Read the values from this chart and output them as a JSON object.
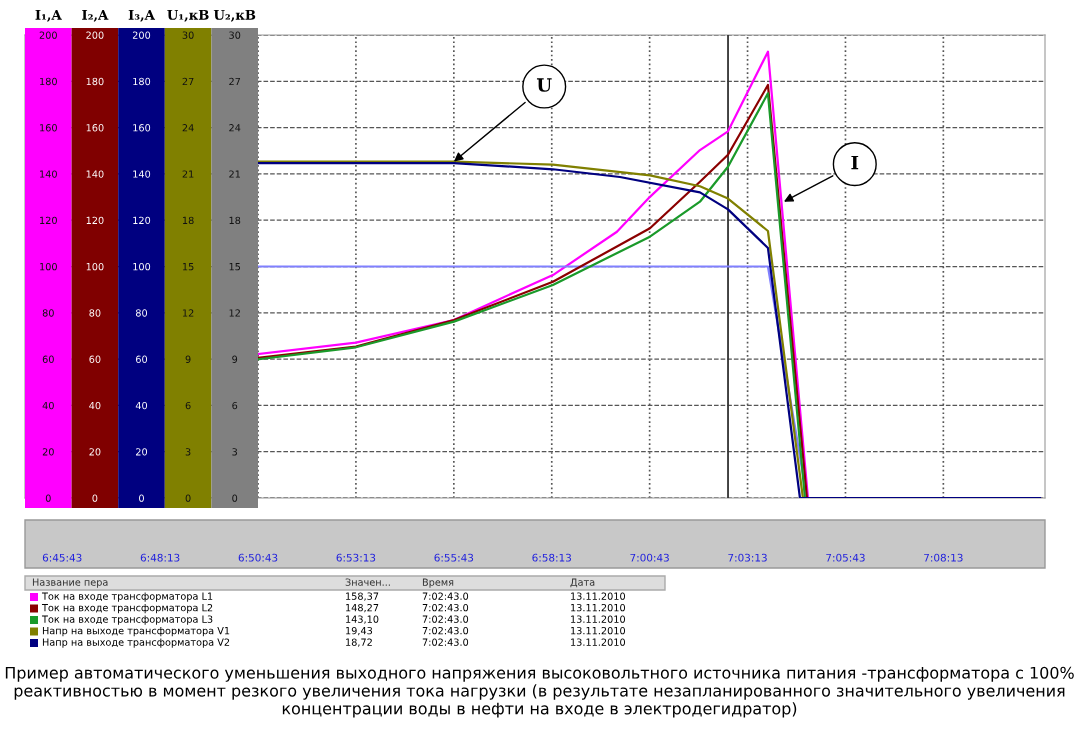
{
  "chart_data": [
    {
      "type": "line",
      "ylabel": "I₁,A",
      "y2label": "I₂,A",
      "y3label": "I₃,A",
      "ylim": [
        0,
        200
      ],
      "yticks": [
        0,
        20,
        40,
        60,
        80,
        100,
        120,
        140,
        160,
        180,
        200
      ],
      "y2lim": [
        0,
        200
      ],
      "y2ticks": [
        0,
        20,
        40,
        60,
        80,
        100,
        120,
        140,
        160,
        180,
        200
      ],
      "y3lim": [
        0,
        200
      ],
      "y3ticks": [
        0,
        20,
        40,
        60,
        80,
        100,
        120,
        140,
        160,
        180,
        200
      ],
      "xlim": [
        6.7461,
        7.1802
      ],
      "xticks": [
        {
          "value": 6.76194,
          "label": "6:45:43"
        },
        {
          "value": 6.80361,
          "label": "6:48:13"
        },
        {
          "value": 6.84528,
          "label": "6:50:43"
        },
        {
          "value": 6.88694,
          "label": "6:53:13"
        },
        {
          "value": 6.92861,
          "label": "6:55:43"
        },
        {
          "value": 6.97028,
          "label": "6:58:13"
        },
        {
          "value": 7.01194,
          "label": "7:00:43"
        },
        {
          "value": 7.05361,
          "label": "7:03:13"
        },
        {
          "value": 7.09528,
          "label": "7:05:43"
        },
        {
          "value": 7.13694,
          "label": "7:08:13"
        }
      ],
      "grid": true,
      "legend": "bottom",
      "marker": "none",
      "line_style": "solid",
      "series": [
        {
          "name": "Ток на входе трансформатора L1",
          "color": "#ff00ff",
          "axis": "y",
          "x": [
            6.84523,
            6.88694,
            6.92865,
            6.94823,
            6.97078,
            6.99803,
            7.01207,
            7.03335,
            7.04528,
            7.06229,
            7.07932,
            7.17806
          ],
          "values": [
            62.2,
            67.1,
            76.9,
            86,
            96.3,
            115,
            130.1,
            150.3,
            158.4,
            192.8,
            0,
            0
          ]
        },
        {
          "name": "Ток на входе трансформатора L2",
          "color": "#8b0000",
          "axis": "y2",
          "x": [
            6.84523,
            6.88694,
            6.92865,
            6.97078,
            7.01207,
            7.03335,
            7.04528,
            7.06229,
            7.07889,
            7.17806
          ],
          "values": [
            60.5,
            65.4,
            76.9,
            93.4,
            116.5,
            136.6,
            148.3,
            178.4,
            0,
            0
          ]
        },
        {
          "name": "Ток на входе трансформатора L3",
          "color": "#1a9a2a",
          "axis": "y3",
          "x": [
            6.84523,
            6.88694,
            6.92865,
            6.97078,
            7.01207,
            7.03335,
            7.04528,
            7.06229,
            7.07803,
            7.17806
          ],
          "values": [
            59.9,
            65.1,
            76.2,
            92.0,
            112.9,
            128,
            143.1,
            174.8,
            0,
            0
          ]
        },
        {
          "color": "#8080ff",
          "axis": "y",
          "x": [
            6.84523,
            7.06229,
            7.07889,
            7.17806
          ],
          "values": [
            100,
            100,
            0,
            0
          ]
        }
      ],
      "ref_lines": [
        {
          "axis": "x",
          "value": 7.0453,
          "color": "#333333",
          "line_style": "solid"
        }
      ],
      "annotations": [
        {
          "text": "I",
          "x": 7.0691,
          "y": 128
        },
        "Название пера",
        "Значен...",
        "Время",
        "Дата",
        "158,37",
        "7:02:43.0",
        "13.11.2010",
        "148,27",
        "7:02:43.0",
        "13.11.2010",
        "143,10",
        "7:02:43.0",
        "13.11.2010",
        "19,43",
        "7:02:43.0",
        "13.11.2010",
        "18,72",
        "7:02:43.0",
        "13.11.2010",
        "Пример автоматического уменьшения выходного напряжения высоковольтного источника питания -трансформатора с 100% реактивностью в момент резкого увеличения тока нагрузки (в результате незапланированного значительного увеличения концентрации воды в нефти на входе в электродегидратор)"
      ]
    },
    {
      "type": "line",
      "ylabel": "U₁,кВ",
      "y2label": "U₂,кВ",
      "ylim": [
        0,
        30
      ],
      "yticks": [
        0,
        3,
        6,
        9,
        12,
        15,
        18,
        21,
        24,
        27,
        30
      ],
      "y2lim": [
        0,
        30
      ],
      "y2ticks": [
        0,
        3,
        6,
        9,
        12,
        15,
        18,
        21,
        24,
        27,
        30
      ],
      "xlim": [
        6.7461,
        7.1802
      ],
      "tick_labels": "y",
      "annotations": [
        {
          "text": "U",
          "x": 6.92865,
          "y": 21.8
        }
      ],
      "legend": "bottom",
      "marker": "none",
      "line_style": "solid",
      "series": [
        {
          "name": "Напр на выходе трансформатора V1",
          "color": "#808000",
          "axis": "y",
          "x": [
            6.84523,
            6.92865,
            6.97078,
            7.01207,
            7.03335,
            7.04528,
            7.06229,
            7.07718,
            7.17806
          ],
          "values": [
            21.8,
            21.8,
            21.6,
            20.9,
            20.2,
            19.4,
            17.3,
            0,
            0
          ]
        },
        {
          "name": "Напр на выходе трансформатора V2",
          "color": "#000080",
          "axis": "y2",
          "x": [
            6.84523,
            6.92865,
            6.97078,
            6.9993,
            7.03335,
            7.04528,
            7.06229,
            7.07591,
            7.17806
          ],
          "values": [
            21.7,
            21.7,
            21.3,
            20.8,
            19.8,
            18.7,
            16.2,
            0,
            0
          ]
        }
      ]
    }
  ]
}
